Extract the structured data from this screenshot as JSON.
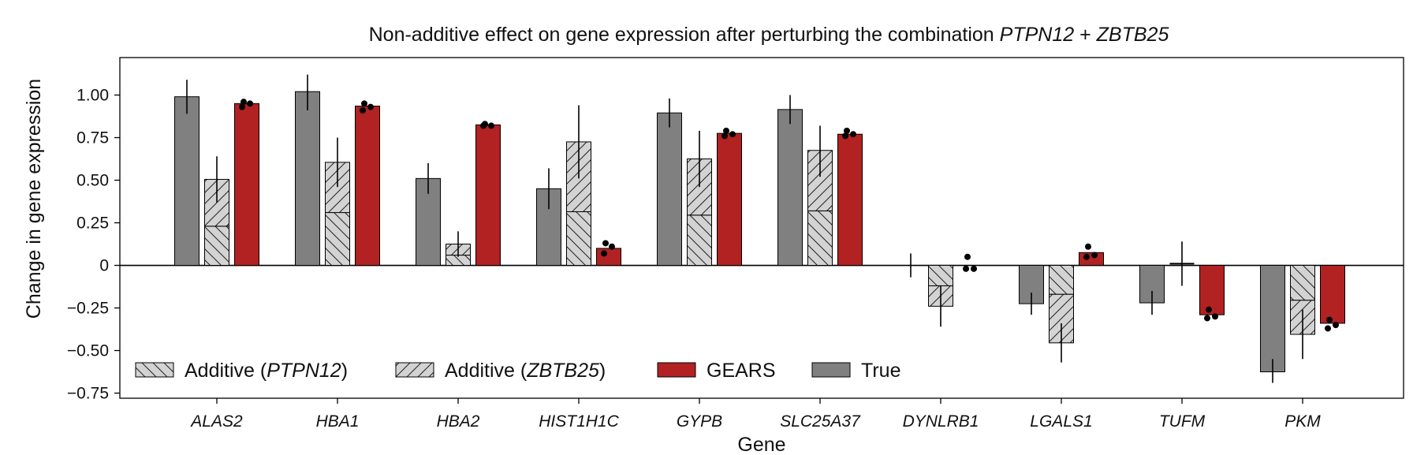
{
  "chart_data": {
    "type": "bar",
    "title": {
      "prefix": "Non-additive effect on gene expression after perturbing the combination ",
      "gene_a": "PTPN12",
      "joiner": " + ",
      "gene_b": "ZBTB25"
    },
    "xlabel": "Gene",
    "ylabel": "Change in gene expression",
    "ylim": [
      -0.78,
      1.22
    ],
    "yticks": [
      -0.75,
      -0.5,
      -0.25,
      0,
      0.25,
      0.5,
      0.75,
      1.0
    ],
    "ytick_labels": [
      "−0.75",
      "−0.50",
      "−0.25",
      "0",
      "0.25",
      "0.50",
      "0.75",
      "1.00"
    ],
    "categories": [
      "ALAS2",
      "HBA1",
      "HBA2",
      "HIST1H1C",
      "GYPB",
      "SLC25A37",
      "DYNLRB1",
      "LGALS1",
      "TUFM",
      "PKM"
    ],
    "grid": false,
    "legend_position": "bottom-left",
    "legend": [
      {
        "key": "additive_a",
        "label_prefix": "Additive (",
        "label_gene": "PTPN12",
        "label_suffix": ")"
      },
      {
        "key": "additive_b",
        "label_prefix": "Additive (",
        "label_gene": "ZBTB25",
        "label_suffix": ")"
      },
      {
        "key": "gears",
        "label_prefix": "GEARS",
        "label_gene": "",
        "label_suffix": ""
      },
      {
        "key": "true",
        "label_prefix": "True",
        "label_gene": "",
        "label_suffix": ""
      }
    ],
    "colors": {
      "true": "#808080",
      "additive_fill": "#d3d3d3",
      "gears": "#b22222",
      "edge": "#000000"
    },
    "series": {
      "true": {
        "values": [
          0.99,
          1.02,
          0.51,
          0.45,
          0.895,
          0.915,
          0.0,
          -0.225,
          -0.22,
          -0.625
        ],
        "err_low": [
          0.89,
          0.91,
          0.42,
          0.33,
          0.81,
          0.83,
          -0.07,
          -0.29,
          -0.29,
          -0.69
        ],
        "err_high": [
          1.09,
          1.12,
          0.6,
          0.57,
          0.98,
          1.0,
          0.07,
          -0.16,
          -0.15,
          -0.55
        ]
      },
      "additive": {
        "values": [
          0.505,
          0.605,
          0.125,
          0.725,
          0.625,
          0.675,
          -0.24,
          -0.455,
          0.01,
          -0.405
        ],
        "split": [
          0.23,
          0.31,
          0.06,
          0.315,
          0.295,
          0.32,
          -0.12,
          -0.17,
          0.0,
          -0.205
        ],
        "err_low": [
          0.37,
          0.46,
          0.05,
          0.51,
          0.46,
          0.52,
          -0.36,
          -0.57,
          -0.12,
          -0.55
        ],
        "err_high": [
          0.64,
          0.75,
          0.2,
          0.94,
          0.79,
          0.82,
          -0.12,
          -0.34,
          0.14,
          -0.26
        ]
      },
      "gears": {
        "values": [
          0.95,
          0.935,
          0.825,
          0.1,
          0.775,
          0.77,
          0.0,
          0.075,
          -0.29,
          -0.34
        ],
        "points": [
          [
            0.96,
            0.93,
            0.95
          ],
          [
            0.95,
            0.91,
            0.93
          ],
          [
            0.83,
            0.82,
            0.82
          ],
          [
            0.13,
            0.07,
            0.11
          ],
          [
            0.79,
            0.76,
            0.77
          ],
          [
            0.79,
            0.76,
            0.77
          ],
          [
            0.05,
            -0.02,
            -0.02
          ],
          [
            0.11,
            0.05,
            0.06
          ],
          [
            -0.26,
            -0.31,
            -0.3
          ],
          [
            -0.32,
            -0.37,
            -0.35
          ]
        ]
      }
    }
  }
}
